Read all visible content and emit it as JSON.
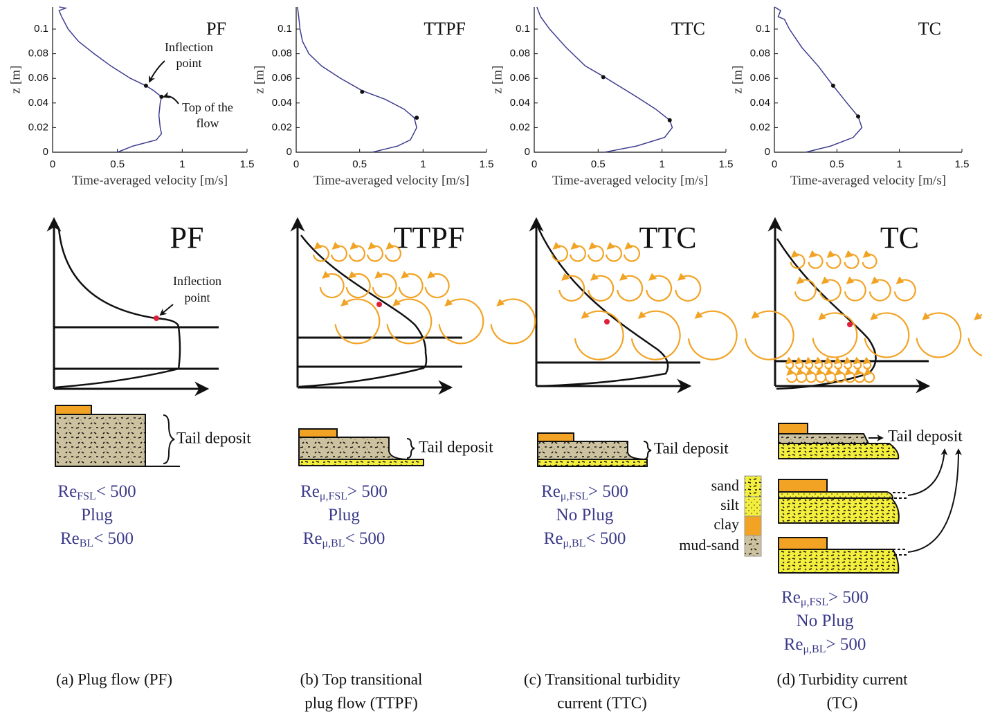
{
  "chart_data": [
    {
      "type": "line",
      "title": "PF",
      "xlabel": "Time-averaged velocity [m/s]",
      "ylabel": "z [m]",
      "xlim": [
        0,
        1.5
      ],
      "ylim": [
        0,
        0.118
      ],
      "xticks": [
        0,
        0.5,
        1,
        1.5
      ],
      "yticks": [
        0,
        0.02,
        0.04,
        0.06,
        0.08,
        0.1
      ],
      "series": [
        {
          "color": "#3d3d8f",
          "x": [
            0.5,
            0.62,
            0.8,
            0.84,
            0.83,
            0.82,
            0.83,
            0.84,
            0.78,
            0.72,
            0.6,
            0.45,
            0.32,
            0.2,
            0.12,
            0.07,
            0.05,
            0.1,
            0.05
          ],
          "values": [
            0,
            0.005,
            0.01,
            0.015,
            0.02,
            0.03,
            0.04,
            0.045,
            0.05,
            0.054,
            0.06,
            0.07,
            0.08,
            0.09,
            0.1,
            0.11,
            0.115,
            0.117,
            0.118
          ]
        }
      ],
      "markers": {
        "color": "#111",
        "x": [
          0.72,
          0.84
        ],
        "values": [
          0.054,
          0.045
        ]
      },
      "annotations": [
        [
          "Inflection",
          "point"
        ],
        [
          "Top of the",
          "flow"
        ]
      ]
    },
    {
      "type": "line",
      "title": "TTPF",
      "xlabel": "Time-averaged velocity [m/s]",
      "ylabel": "z [m]",
      "xlim": [
        0,
        1.5
      ],
      "ylim": [
        0,
        0.118
      ],
      "xticks": [
        0,
        0.5,
        1,
        1.5
      ],
      "yticks": [
        0,
        0.02,
        0.04,
        0.06,
        0.08,
        0.1
      ],
      "series": [
        {
          "color": "#3d3d8f",
          "x": [
            0.6,
            0.8,
            0.9,
            0.95,
            0.93,
            0.85,
            0.7,
            0.52,
            0.35,
            0.2,
            0.1,
            0.05,
            0.03,
            0.02,
            0.01
          ],
          "values": [
            0,
            0.005,
            0.01,
            0.02,
            0.028,
            0.035,
            0.043,
            0.05,
            0.06,
            0.07,
            0.08,
            0.09,
            0.1,
            0.11,
            0.118
          ]
        }
      ],
      "markers": {
        "color": "#111",
        "x": [
          0.52,
          0.95
        ],
        "values": [
          0.049,
          0.028
        ]
      }
    },
    {
      "type": "line",
      "title": "TTC",
      "xlabel": "Time-averaged velocity [m/s]",
      "ylabel": "z [m]",
      "xlim": [
        0,
        1.5
      ],
      "ylim": [
        0,
        0.118
      ],
      "xticks": [
        0,
        0.5,
        1,
        1.5
      ],
      "yticks": [
        0,
        0.02,
        0.04,
        0.06,
        0.08,
        0.1
      ],
      "series": [
        {
          "color": "#3d3d8f",
          "x": [
            0.55,
            0.8,
            1.02,
            1.08,
            1.06,
            0.95,
            0.8,
            0.55,
            0.4,
            0.25,
            0.12,
            0.05,
            0.02
          ],
          "values": [
            0,
            0.005,
            0.012,
            0.02,
            0.026,
            0.035,
            0.045,
            0.061,
            0.07,
            0.085,
            0.1,
            0.11,
            0.118
          ]
        }
      ],
      "markers": {
        "color": "#111",
        "x": [
          0.54,
          1.06
        ],
        "values": [
          0.061,
          0.026
        ]
      }
    },
    {
      "type": "line",
      "title": "TC",
      "xlabel": "Time-averaged velocity [m/s]",
      "ylabel": "z [m]",
      "xlim": [
        0,
        1.5
      ],
      "ylim": [
        0,
        0.118
      ],
      "xticks": [
        0,
        0.5,
        1,
        1.5
      ],
      "yticks": [
        0,
        0.02,
        0.04,
        0.06,
        0.08,
        0.1
      ],
      "series": [
        {
          "color": "#3d3d8f",
          "x": [
            0.25,
            0.45,
            0.63,
            0.7,
            0.67,
            0.58,
            0.47,
            0.35,
            0.22,
            0.12,
            0.08,
            0.03,
            0.05,
            0.0
          ],
          "values": [
            0,
            0.005,
            0.012,
            0.02,
            0.029,
            0.04,
            0.054,
            0.07,
            0.085,
            0.1,
            0.108,
            0.11,
            0.115,
            0.118
          ]
        }
      ],
      "markers": {
        "color": "#111",
        "x": [
          0.47,
          0.67
        ],
        "values": [
          0.054,
          0.029
        ]
      }
    }
  ],
  "schematics": [
    {
      "title": "PF",
      "annotation": [
        "Inflection",
        "point"
      ],
      "deposit_label": "Tail deposit",
      "regime": [
        {
          "base": "Re",
          "sub": "FSL",
          "rest": "< 500"
        },
        {
          "text": "Plug"
        },
        {
          "base": "Re",
          "sub": "BL",
          "rest": "< 500"
        }
      ],
      "caption": [
        "(a) Plug flow (PF)"
      ]
    },
    {
      "title": "TTPF",
      "deposit_label": "Tail deposit",
      "regime": [
        {
          "base": "Re",
          "sub": "μ,FSL",
          "rest": "> 500"
        },
        {
          "text": "Plug"
        },
        {
          "base": "Re",
          "sub": "μ,BL",
          "rest": "< 500"
        }
      ],
      "caption": [
        "(b) Top transitional",
        "plug flow (TTPF)"
      ]
    },
    {
      "title": "TTC",
      "deposit_label": "Tail deposit",
      "regime": [
        {
          "base": "Re",
          "sub": "μ,FSL",
          "rest": "> 500"
        },
        {
          "text": "No Plug"
        },
        {
          "base": "Re",
          "sub": "μ,BL",
          "rest": "< 500"
        }
      ],
      "caption": [
        "(c) Transitional turbidity",
        "current (TTC)"
      ]
    },
    {
      "title": "TC",
      "deposit_label": "Tail deposit",
      "regime": [
        {
          "base": "Re",
          "sub": "μ,FSL",
          "rest": "> 500"
        },
        {
          "text": "No Plug"
        },
        {
          "base": "Re",
          "sub": "μ,BL",
          "rest": "> 500"
        }
      ],
      "caption": [
        "(d) Turbidity current",
        "(TC)"
      ]
    }
  ],
  "legend": [
    "sand",
    "silt",
    "clay",
    "mud-sand"
  ]
}
